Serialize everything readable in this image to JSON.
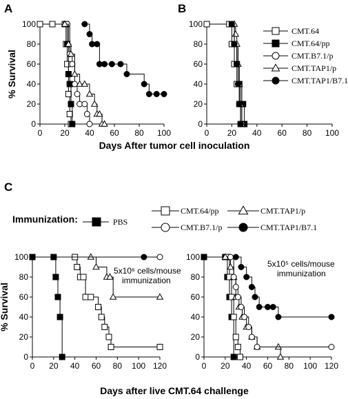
{
  "panels": {
    "a": "A",
    "b": "B",
    "c": "C"
  },
  "top_legend": [
    {
      "label": "CMT.64",
      "marker": "square",
      "fill": "#ffffff"
    },
    {
      "label": "CMT.64/pp",
      "marker": "square",
      "fill": "#000000"
    },
    {
      "label": "CMT.B7.1/p",
      "marker": "circle",
      "fill": "#ffffff"
    },
    {
      "label": "CMT.TAP1/p",
      "marker": "triangle",
      "fill": "#ffffff"
    },
    {
      "label": "CMT.TAP1/B7.1",
      "marker": "circle",
      "fill": "#000000"
    }
  ],
  "top_xlabel": "Days After tumor cell inoculation",
  "immunization_label": "Immunization:",
  "bottom_legend": [
    {
      "label": "PBS",
      "marker": "square",
      "fill": "#000000"
    },
    {
      "label": "CMT.64/pp",
      "marker": "square",
      "fill": "#ffffff"
    },
    {
      "label": "CMT.TAP1/p",
      "marker": "triangle",
      "fill": "#ffffff"
    },
    {
      "label": "CMT.B7.1/p",
      "marker": "circle",
      "fill": "#ffffff"
    },
    {
      "label": "CMT.TAP1/B7.1",
      "marker": "circle",
      "fill": "#000000"
    }
  ],
  "annotations": {
    "c_left": [
      "5x10⁶ cells/mouse",
      "immunization"
    ],
    "c_right": [
      "5x10⁵ cells/mouse",
      "immunization"
    ]
  },
  "bottom_xlabel": "Days after live CMT.64 challenge",
  "chart_data": [
    {
      "id": "A",
      "type": "line",
      "xlabel": "",
      "ylabel": "% Survival",
      "xlim": [
        0,
        100
      ],
      "ylim": [
        0,
        100
      ],
      "xticks": [
        0,
        20,
        40,
        60,
        80,
        100
      ],
      "yticks": [
        0,
        20,
        40,
        60,
        80,
        100
      ],
      "series": [
        {
          "name": "CMT.64",
          "marker": "square",
          "fill": "#ffffff",
          "x": [
            0,
            10,
            20,
            21,
            22,
            23,
            24,
            25
          ],
          "y": [
            100,
            100,
            100,
            80,
            60,
            30,
            10,
            0
          ]
        },
        {
          "name": "CMT.64/pp",
          "marker": "square",
          "fill": "#000000",
          "x": [
            21,
            22,
            23,
            24,
            25,
            26
          ],
          "y": [
            100,
            80,
            50,
            40,
            20,
            0
          ]
        },
        {
          "name": "CMT.B7.1/p",
          "marker": "circle",
          "fill": "#ffffff",
          "x": [
            22,
            24,
            26,
            28,
            30,
            32,
            36,
            38,
            40
          ],
          "y": [
            100,
            70,
            60,
            40,
            30,
            20,
            20,
            10,
            0
          ]
        },
        {
          "name": "CMT.TAP1/p",
          "marker": "triangle",
          "fill": "#ffffff",
          "x": [
            20,
            23,
            25,
            28,
            32,
            36,
            40,
            44,
            46,
            48,
            50,
            52
          ],
          "y": [
            100,
            80,
            70,
            50,
            40,
            40,
            30,
            20,
            10,
            10,
            0,
            0
          ]
        },
        {
          "name": "CMT.TAP1/B7.1",
          "marker": "circle",
          "fill": "#000000",
          "x": [
            36,
            40,
            42,
            46,
            48,
            52,
            58,
            65,
            70,
            84,
            88,
            94,
            100
          ],
          "y": [
            100,
            90,
            80,
            80,
            60,
            60,
            60,
            60,
            50,
            40,
            30,
            30,
            30
          ]
        }
      ]
    },
    {
      "id": "B",
      "type": "line",
      "xlabel": "",
      "ylabel": "",
      "xlim": [
        0,
        100
      ],
      "ylim": [
        0,
        100
      ],
      "xticks": [
        0,
        20,
        40,
        60,
        80,
        100
      ],
      "yticks": [
        0,
        20,
        40,
        60,
        80,
        100
      ],
      "series": [
        {
          "name": "CMT.64",
          "marker": "square",
          "fill": "#ffffff",
          "x": [
            0,
            18,
            20,
            22,
            24,
            26,
            27,
            28
          ],
          "y": [
            100,
            100,
            80,
            60,
            40,
            20,
            0,
            0
          ]
        },
        {
          "name": "CMT.64/pp",
          "marker": "square",
          "fill": "#000000",
          "x": [
            20,
            22,
            24,
            26,
            28,
            29,
            30
          ],
          "y": [
            100,
            80,
            60,
            40,
            20,
            20,
            0
          ]
        },
        {
          "name": "CMT.B7.1/p",
          "marker": "circle",
          "fill": "#ffffff",
          "x": [
            20,
            22,
            24,
            25,
            26,
            28
          ],
          "y": [
            100,
            80,
            60,
            40,
            20,
            0
          ]
        },
        {
          "name": "CMT.TAP1/p",
          "marker": "triangle",
          "fill": "#ffffff",
          "x": [
            22,
            23,
            24,
            25,
            26,
            27,
            28
          ],
          "y": [
            100,
            90,
            80,
            60,
            40,
            20,
            0
          ]
        },
        {
          "name": "CMT.TAP1/B7.1",
          "marker": "circle",
          "fill": "#000000",
          "x": [
            20,
            22,
            24,
            25,
            26,
            27
          ],
          "y": [
            100,
            80,
            60,
            40,
            20,
            0
          ]
        }
      ]
    },
    {
      "id": "C-left",
      "type": "line",
      "xlabel": "",
      "ylabel": "% Survival",
      "xlim": [
        0,
        120
      ],
      "ylim": [
        0,
        100
      ],
      "xticks": [
        0,
        20,
        40,
        60,
        80,
        100,
        120
      ],
      "yticks": [
        0,
        20,
        40,
        60,
        80,
        100
      ],
      "series": [
        {
          "name": "PBS",
          "marker": "square",
          "fill": "#000000",
          "x": [
            0,
            20,
            22,
            24,
            26,
            28
          ],
          "y": [
            100,
            100,
            80,
            60,
            40,
            0
          ]
        },
        {
          "name": "CMT.64/pp",
          "marker": "square",
          "fill": "#ffffff",
          "x": [
            40,
            42,
            45,
            48,
            50,
            55,
            62,
            65,
            68,
            72,
            74,
            120
          ],
          "y": [
            100,
            90,
            80,
            80,
            60,
            60,
            50,
            40,
            30,
            20,
            10,
            10
          ]
        },
        {
          "name": "CMT.TAP1/p",
          "marker": "triangle",
          "fill": "#ffffff",
          "x": [
            55,
            60,
            70,
            73,
            76,
            120
          ],
          "y": [
            100,
            90,
            80,
            80,
            60,
            60
          ]
        },
        {
          "name": "CMT.B7.1/p",
          "marker": "circle",
          "fill": "#ffffff",
          "x": [
            0,
            120
          ],
          "y": [
            100,
            100
          ]
        },
        {
          "name": "CMT.TAP1/B7.1",
          "marker": "circle",
          "fill": "#000000",
          "x": [
            0,
            105
          ],
          "y": [
            100,
            100
          ]
        }
      ]
    },
    {
      "id": "C-right",
      "type": "line",
      "xlabel": "",
      "ylabel": "",
      "xlim": [
        0,
        120
      ],
      "ylim": [
        0,
        100
      ],
      "xticks": [
        0,
        20,
        40,
        60,
        80,
        100,
        120
      ],
      "yticks": [
        0,
        20,
        40,
        60,
        80,
        100
      ],
      "series": [
        {
          "name": "PBS",
          "marker": "square",
          "fill": "#000000",
          "x": [
            0,
            20,
            22,
            24,
            26,
            28
          ],
          "y": [
            100,
            100,
            80,
            60,
            40,
            0
          ]
        },
        {
          "name": "CMT.64/pp",
          "marker": "square",
          "fill": "#ffffff",
          "x": [
            22,
            24,
            26,
            28,
            30,
            32,
            34
          ],
          "y": [
            100,
            80,
            60,
            40,
            20,
            10,
            0
          ]
        },
        {
          "name": "CMT.TAP1/p",
          "marker": "triangle",
          "fill": "#ffffff",
          "x": [
            20,
            25,
            28,
            30,
            33,
            36,
            40,
            45,
            50,
            70,
            72
          ],
          "y": [
            100,
            90,
            80,
            60,
            50,
            40,
            30,
            20,
            10,
            10,
            0
          ]
        },
        {
          "name": "CMT.B7.1/p",
          "marker": "circle",
          "fill": "#ffffff",
          "x": [
            25,
            28,
            30,
            32,
            35,
            38,
            42,
            45,
            50,
            120
          ],
          "y": [
            100,
            80,
            70,
            60,
            50,
            40,
            30,
            20,
            10,
            10
          ]
        },
        {
          "name": "CMT.TAP1/B7.1",
          "marker": "circle",
          "fill": "#000000",
          "x": [
            30,
            35,
            40,
            45,
            48,
            52,
            60,
            65,
            70,
            120
          ],
          "y": [
            100,
            90,
            80,
            70,
            60,
            50,
            50,
            50,
            40,
            40
          ]
        }
      ]
    }
  ]
}
